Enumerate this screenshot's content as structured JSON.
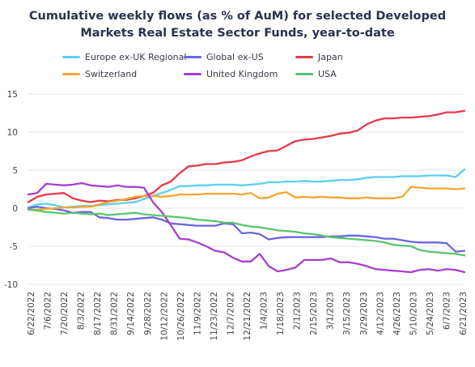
{
  "title_lines": [
    "Cumulative weekly flows (as % of AuM) for selected Developed",
    "Markets Real Estate Sector Funds, year-to-date"
  ],
  "chart_data": {
    "type": "line",
    "title": "Cumulative weekly flows (as % of AuM) for selected Developed Markets Real Estate Sector Funds, year-to-date",
    "xlabel": "",
    "ylabel": "",
    "ylim": [
      -10,
      15
    ],
    "yticks": [
      -10,
      -5,
      0,
      5,
      10,
      15
    ],
    "grid": "horizontal",
    "legend_position": "top",
    "xtick_labels": [
      "6/22/2022",
      "7/6/2022",
      "7/20/2022",
      "8/3/2022",
      "8/17/2022",
      "8/31/2022",
      "9/14/2022",
      "9/28/2022",
      "10/12/2022",
      "10/26/2022",
      "11/9/2022",
      "11/23/2022",
      "12/7/2022",
      "12/21/2022",
      "1/4/2023",
      "1/18/2023",
      "2/1/2023",
      "2/15/2023",
      "3/1/2023",
      "3/15/2023",
      "3/29/2023",
      "4/12/2023",
      "4/26/2023",
      "5/10/2023",
      "5/24/2023",
      "6/7/2023",
      "6/21/2023"
    ],
    "series": [
      {
        "name": "Europe ex-UK Regional",
        "color": "#5ad0ee",
        "values": [
          0.1,
          0.5,
          0.6,
          0.4,
          0.1,
          0.2,
          0.3,
          0.3,
          0.4,
          0.5,
          0.6,
          0.7,
          0.8,
          1.2,
          1.6,
          2.0,
          2.4,
          2.9,
          2.9,
          3.0,
          3.0,
          3.1,
          3.1,
          3.1,
          3.0,
          3.1,
          3.2,
          3.4,
          3.4,
          3.5,
          3.5,
          3.6,
          3.5,
          3.5,
          3.6,
          3.7,
          3.7,
          3.8,
          4.0,
          4.1,
          4.1,
          4.1,
          4.2,
          4.2,
          4.2,
          4.3,
          4.3,
          4.3,
          4.1,
          5.1
        ]
      },
      {
        "name": "Global ex-US",
        "color": "#6a66e0",
        "values": [
          0.0,
          0.2,
          0.0,
          -0.1,
          -0.3,
          -0.6,
          -0.5,
          -0.5,
          -1.2,
          -1.3,
          -1.5,
          -1.5,
          -1.4,
          -1.3,
          -1.2,
          -1.5,
          -2.0,
          -2.1,
          -2.2,
          -2.3,
          -2.3,
          -2.3,
          -2.0,
          -2.1,
          -3.3,
          -3.2,
          -3.4,
          -4.1,
          -3.9,
          -3.8,
          -3.8,
          -3.8,
          -3.8,
          -3.8,
          -3.7,
          -3.7,
          -3.6,
          -3.6,
          -3.7,
          -3.8,
          -4.0,
          -4.0,
          -4.2,
          -4.4,
          -4.5,
          -4.5,
          -4.5,
          -4.6,
          -5.7,
          -5.6
        ]
      },
      {
        "name": "Japan",
        "color": "#e8394b",
        "values": [
          0.8,
          1.5,
          1.8,
          1.9,
          2.0,
          1.3,
          1.0,
          0.8,
          1.0,
          0.9,
          1.1,
          1.1,
          1.3,
          1.6,
          2.0,
          3.0,
          3.5,
          4.6,
          5.5,
          5.6,
          5.8,
          5.8,
          6.0,
          6.1,
          6.3,
          6.8,
          7.2,
          7.5,
          7.6,
          8.2,
          8.8,
          9.0,
          9.1,
          9.3,
          9.5,
          9.8,
          9.9,
          10.2,
          11.0,
          11.5,
          11.8,
          11.8,
          11.9,
          11.9,
          12.0,
          12.1,
          12.3,
          12.6,
          12.6,
          12.8
        ]
      },
      {
        "name": "Switzerland",
        "color": "#f3a530",
        "values": [
          -0.2,
          -0.2,
          -0.1,
          0.0,
          0.1,
          0.1,
          0.2,
          0.2,
          0.5,
          0.8,
          1.0,
          1.2,
          1.5,
          1.6,
          1.6,
          1.5,
          1.6,
          1.8,
          1.8,
          1.8,
          1.9,
          1.9,
          1.9,
          1.9,
          1.8,
          2.0,
          1.3,
          1.4,
          1.9,
          2.1,
          1.4,
          1.5,
          1.4,
          1.5,
          1.4,
          1.4,
          1.3,
          1.3,
          1.4,
          1.3,
          1.3,
          1.3,
          1.5,
          2.8,
          2.7,
          2.6,
          2.6,
          2.6,
          2.5,
          2.6
        ]
      },
      {
        "name": "United Kingdom",
        "color": "#a63fd0",
        "values": [
          1.8,
          2.0,
          3.2,
          3.1,
          3.0,
          3.1,
          3.3,
          3.0,
          2.9,
          2.8,
          3.0,
          2.8,
          2.8,
          2.7,
          0.8,
          -0.5,
          -2.2,
          -4.0,
          -4.1,
          -4.5,
          -5.0,
          -5.6,
          -5.8,
          -6.5,
          -7.0,
          -7.0,
          -6.0,
          -7.6,
          -8.3,
          -8.1,
          -7.8,
          -6.8,
          -6.8,
          -6.8,
          -6.6,
          -7.1,
          -7.1,
          -7.3,
          -7.6,
          -8.0,
          -8.1,
          -8.2,
          -8.3,
          -8.4,
          -8.1,
          -8.0,
          -8.2,
          -8.0,
          -8.1,
          -8.4
        ]
      },
      {
        "name": "USA",
        "color": "#5cc46e",
        "values": [
          -0.2,
          -0.3,
          -0.5,
          -0.6,
          -0.7,
          -0.6,
          -0.7,
          -0.8,
          -0.7,
          -0.9,
          -0.8,
          -0.7,
          -0.6,
          -0.8,
          -0.9,
          -1.0,
          -1.1,
          -1.2,
          -1.3,
          -1.5,
          -1.6,
          -1.7,
          -1.9,
          -1.9,
          -2.2,
          -2.4,
          -2.5,
          -2.7,
          -2.9,
          -3.0,
          -3.1,
          -3.3,
          -3.4,
          -3.6,
          -3.8,
          -3.9,
          -4.0,
          -4.1,
          -4.2,
          -4.3,
          -4.5,
          -4.8,
          -4.9,
          -5.0,
          -5.5,
          -5.7,
          -5.8,
          -5.9,
          -6.0,
          -6.2
        ]
      }
    ]
  }
}
